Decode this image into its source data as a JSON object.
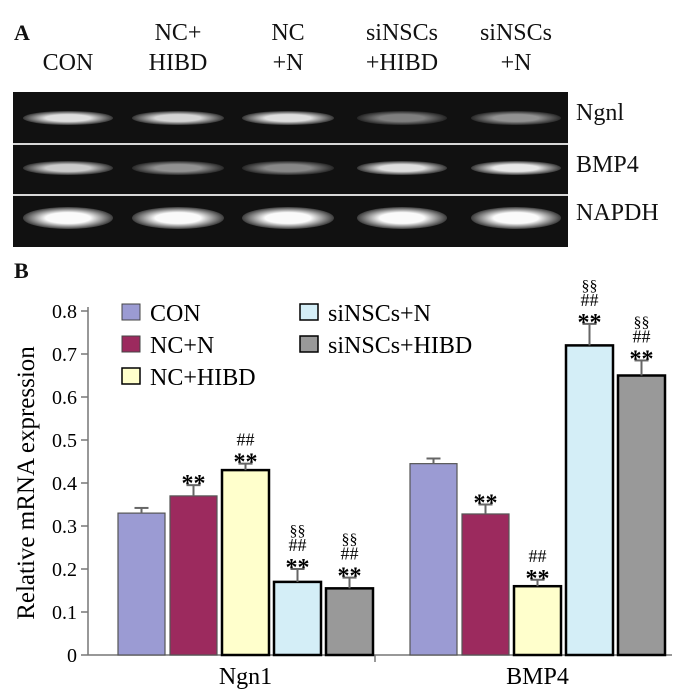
{
  "panel_a": {
    "letter": "A",
    "lanes": [
      {
        "label": "CON"
      },
      {
        "label": "NC+\nHIBD"
      },
      {
        "label": "NC\n+N"
      },
      {
        "label": "siNSCs\n+HIBD"
      },
      {
        "label": "siNSCs\n+N"
      }
    ],
    "rows": [
      {
        "label": "Ngnl",
        "intensity": [
          0.85,
          0.8,
          0.85,
          0.35,
          0.45
        ]
      },
      {
        "label": "BMP4",
        "intensity": [
          0.75,
          0.45,
          0.4,
          0.85,
          0.9
        ]
      },
      {
        "label": "NAPDH",
        "intensity": [
          1.0,
          1.0,
          1.0,
          1.0,
          1.0
        ]
      }
    ]
  },
  "panel_b": {
    "letter": "B"
  },
  "chart_data": {
    "type": "bar",
    "categories": [
      "Ngn1",
      "BMP4"
    ],
    "ylabel": "Relative  mRNA  expression",
    "ylim": [
      0,
      0.8
    ],
    "yticks": [
      "0",
      "0.1",
      "0.2",
      "0.3",
      "0.4",
      "0.5",
      "0.6",
      "0.7",
      "0.8"
    ],
    "grid": false,
    "legend_position": "top",
    "series": [
      {
        "name": "CON",
        "color": "#9b9bd3",
        "values": [
          0.33,
          0.445
        ],
        "errors": [
          0.012,
          0.012
        ],
        "annotations": [
          "",
          ""
        ]
      },
      {
        "name": "NC+N",
        "color": "#9c2a5e",
        "values": [
          0.37,
          0.328
        ],
        "errors": [
          0.025,
          0.022
        ],
        "annotations": [
          "**",
          "**"
        ]
      },
      {
        "name": "NC+HIBD",
        "color": "#ffffcc",
        "values": [
          0.43,
          0.16
        ],
        "errors": [
          0.015,
          0.015
        ],
        "annotations": [
          "##\n**",
          "##\n**"
        ]
      },
      {
        "name": "siNSCs+N",
        "color": "#d4eef7",
        "values": [
          0.17,
          0.72
        ],
        "errors": [
          0.03,
          0.05
        ],
        "annotations": [
          "§§\n##\n**",
          "§§\n##\n**"
        ]
      },
      {
        "name": "siNSCs+HIBD",
        "color": "#999999",
        "values": [
          0.155,
          0.65
        ],
        "errors": [
          0.025,
          0.035
        ],
        "annotations": [
          "§§\n##\n**",
          "§§\n##\n**"
        ]
      }
    ]
  }
}
